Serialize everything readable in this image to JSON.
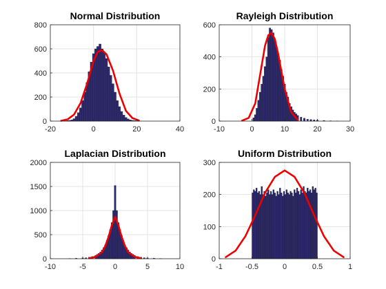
{
  "colors": {
    "bars": "#2e2a6b",
    "fit": "#ee0000",
    "grid": "#e3e3e3",
    "axis": "#262626"
  },
  "chart_data": [
    {
      "type": "bar",
      "subtype": "histogram-with-fit",
      "title": "Normal Distribution",
      "xlim": [
        -20,
        40
      ],
      "ylim": [
        0,
        800
      ],
      "xticks": [
        "-20",
        "0",
        "20",
        "40"
      ],
      "yticks": [
        "0",
        "200",
        "400",
        "600",
        "800"
      ],
      "grid": true,
      "histogram": {
        "bin_width": 1,
        "x": [
          -13,
          -12,
          -11,
          -10,
          -9,
          -8,
          -7,
          -6,
          -5,
          -4,
          -3,
          -2,
          -1,
          0,
          1,
          2,
          3,
          4,
          5,
          6,
          7,
          8,
          9,
          10,
          11,
          12,
          13,
          14,
          15,
          16,
          17,
          18,
          19,
          20
        ],
        "values": [
          2,
          4,
          6,
          10,
          20,
          40,
          70,
          110,
          170,
          240,
          320,
          410,
          490,
          560,
          600,
          620,
          640,
          600,
          570,
          520,
          450,
          380,
          310,
          240,
          170,
          120,
          80,
          50,
          30,
          18,
          10,
          6,
          4,
          2
        ]
      },
      "fit_curve": {
        "x": [
          -15,
          -12,
          -9,
          -6,
          -3,
          0,
          2,
          4,
          6,
          9,
          12,
          15,
          18,
          21
        ],
        "y": [
          3,
          15,
          55,
          150,
          310,
          500,
          575,
          590,
          555,
          420,
          230,
          85,
          25,
          5
        ]
      }
    },
    {
      "type": "bar",
      "subtype": "histogram-with-fit",
      "title": "Rayleigh Distribution",
      "xlim": [
        -10,
        30
      ],
      "ylim": [
        0,
        600
      ],
      "xticks": [
        "-10",
        "0",
        "10",
        "20",
        "30"
      ],
      "yticks": [
        "0",
        "200",
        "400",
        "600"
      ],
      "grid": true,
      "histogram": {
        "bin_width": 0.5,
        "x": [
          0.5,
          1,
          1.5,
          2,
          2.5,
          3,
          3.5,
          4,
          4.5,
          5,
          5.5,
          6,
          6.5,
          7,
          7.5,
          8,
          8.5,
          9,
          9.5,
          10,
          10.5,
          11,
          11.5,
          12,
          12.5,
          13,
          13.5,
          14,
          15,
          16,
          17,
          18,
          19,
          20,
          22,
          24,
          26
        ],
        "values": [
          20,
          40,
          80,
          130,
          180,
          230,
          280,
          340,
          400,
          520,
          580,
          570,
          550,
          500,
          460,
          420,
          380,
          320,
          280,
          230,
          180,
          150,
          110,
          90,
          70,
          55,
          45,
          35,
          25,
          18,
          12,
          10,
          8,
          6,
          4,
          2,
          1
        ]
      },
      "fit_curve": {
        "x": [
          -3,
          -1,
          1,
          3,
          4,
          5,
          6,
          7,
          8,
          10,
          12,
          14
        ],
        "y": [
          3,
          20,
          110,
          350,
          470,
          535,
          550,
          510,
          420,
          200,
          55,
          8
        ]
      }
    },
    {
      "type": "bar",
      "subtype": "histogram-with-fit",
      "title": "Laplacian Distribution",
      "xlim": [
        -10,
        10
      ],
      "ylim": [
        0,
        2000
      ],
      "xticks": [
        "-10",
        "-5",
        "0",
        "5",
        "10"
      ],
      "yticks": [
        "0",
        "500",
        "1000",
        "1500",
        "2000"
      ],
      "grid": true,
      "histogram": {
        "bin_width": 0.25,
        "x": [
          -7,
          -6,
          -5,
          -4.5,
          -4,
          -3.5,
          -3,
          -2.75,
          -2.5,
          -2.25,
          -2,
          -1.75,
          -1.5,
          -1.25,
          -1,
          -0.75,
          -0.5,
          -0.25,
          0,
          0.25,
          0.5,
          0.75,
          1,
          1.25,
          1.5,
          1.75,
          2,
          2.25,
          2.5,
          2.75,
          3,
          3.5,
          4,
          4.5,
          5,
          6,
          7
        ],
        "values": [
          5,
          10,
          15,
          20,
          30,
          45,
          70,
          90,
          110,
          140,
          180,
          230,
          290,
          380,
          480,
          600,
          750,
          1000,
          1520,
          1000,
          750,
          600,
          480,
          380,
          290,
          230,
          180,
          140,
          110,
          90,
          70,
          45,
          30,
          20,
          15,
          10,
          5
        ]
      },
      "fit_curve": {
        "x": [
          -4,
          -3,
          -2,
          -1.5,
          -1,
          -0.5,
          0,
          0.5,
          1,
          1.5,
          2,
          3,
          4
        ],
        "y": [
          10,
          40,
          140,
          270,
          460,
          700,
          870,
          700,
          460,
          270,
          140,
          40,
          10
        ]
      }
    },
    {
      "type": "bar",
      "subtype": "histogram-with-fit",
      "title": "Uniform Distribution",
      "xlim": [
        -1,
        1
      ],
      "ylim": [
        0,
        300
      ],
      "xticks": [
        "-1",
        "-0.5",
        "0",
        "0.5",
        "1"
      ],
      "yticks": [
        "0",
        "100",
        "200",
        "300"
      ],
      "grid": true,
      "histogram": {
        "bin_width": 0.02,
        "x": [
          -0.49,
          -0.47,
          -0.45,
          -0.43,
          -0.41,
          -0.39,
          -0.37,
          -0.35,
          -0.33,
          -0.31,
          -0.29,
          -0.27,
          -0.25,
          -0.23,
          -0.21,
          -0.19,
          -0.17,
          -0.15,
          -0.13,
          -0.11,
          -0.09,
          -0.07,
          -0.05,
          -0.03,
          -0.01,
          0.01,
          0.03,
          0.05,
          0.07,
          0.09,
          0.11,
          0.13,
          0.15,
          0.17,
          0.19,
          0.21,
          0.23,
          0.25,
          0.27,
          0.29,
          0.31,
          0.33,
          0.35,
          0.37,
          0.39,
          0.41,
          0.43,
          0.45,
          0.47,
          0.49
        ],
        "values": [
          205,
          215,
          210,
          220,
          205,
          210,
          200,
          225,
          200,
          210,
          195,
          205,
          215,
          200,
          210,
          200,
          215,
          205,
          195,
          210,
          200,
          220,
          205,
          195,
          210,
          200,
          215,
          205,
          200,
          210,
          205,
          195,
          215,
          205,
          220,
          210,
          200,
          215,
          205,
          225,
          210,
          205,
          220,
          210,
          215,
          205,
          225,
          215,
          220,
          205
        ]
      },
      "fit_curve": {
        "x": [
          -0.9,
          -0.75,
          -0.6,
          -0.45,
          -0.3,
          -0.15,
          0,
          0.15,
          0.3,
          0.45,
          0.6,
          0.75,
          0.9
        ],
        "y": [
          5,
          25,
          70,
          135,
          205,
          255,
          275,
          255,
          205,
          135,
          70,
          25,
          5
        ]
      }
    }
  ]
}
